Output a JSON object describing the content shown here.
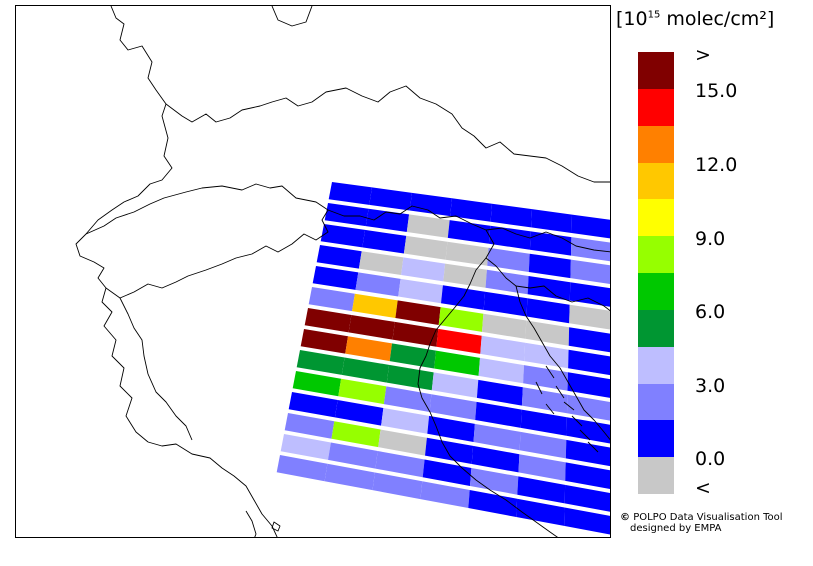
{
  "legend": {
    "unit_prefix": "[10",
    "unit_exp": "15",
    "unit_suffix": " molec/cm²]",
    "ticks": [
      ">",
      "15.0",
      "12.0",
      "9.0",
      "6.0",
      "3.0",
      "0.0",
      "<"
    ],
    "colors": [
      "#800000",
      "#ff0000",
      "#ff8000",
      "#ffc800",
      "#ffff00",
      "#96ff00",
      "#00c800",
      "#009632",
      "#bebeff",
      "#8080ff",
      "#0000ff",
      "#c8c8c8"
    ]
  },
  "credit": {
    "symbol": "©",
    "line1": "POLPO Data Visualisation Tool",
    "line2": "designed by EMPA"
  },
  "swath_grid": {
    "comment_free": true,
    "rows": [
      [
        10,
        10,
        10,
        10,
        10,
        10,
        10
      ],
      [
        10,
        10,
        11,
        10,
        10,
        10,
        9
      ],
      [
        10,
        10,
        11,
        11,
        9,
        10,
        9
      ],
      [
        10,
        11,
        8,
        11,
        9,
        10,
        10
      ],
      [
        10,
        9,
        8,
        10,
        10,
        10,
        11
      ],
      [
        9,
        3,
        0,
        5,
        11,
        11,
        10
      ],
      [
        0,
        0,
        0,
        1,
        8,
        8,
        10
      ],
      [
        0,
        2,
        7,
        6,
        8,
        9,
        10
      ],
      [
        7,
        7,
        7,
        8,
        10,
        9,
        9
      ],
      [
        6,
        5,
        9,
        9,
        10,
        10,
        10
      ],
      [
        10,
        10,
        8,
        10,
        9,
        9,
        10
      ],
      [
        9,
        5,
        11,
        10,
        10,
        9,
        10
      ],
      [
        8,
        9,
        9,
        10,
        9,
        10,
        10
      ],
      [
        9,
        9,
        9,
        9,
        10,
        10,
        10
      ]
    ]
  }
}
